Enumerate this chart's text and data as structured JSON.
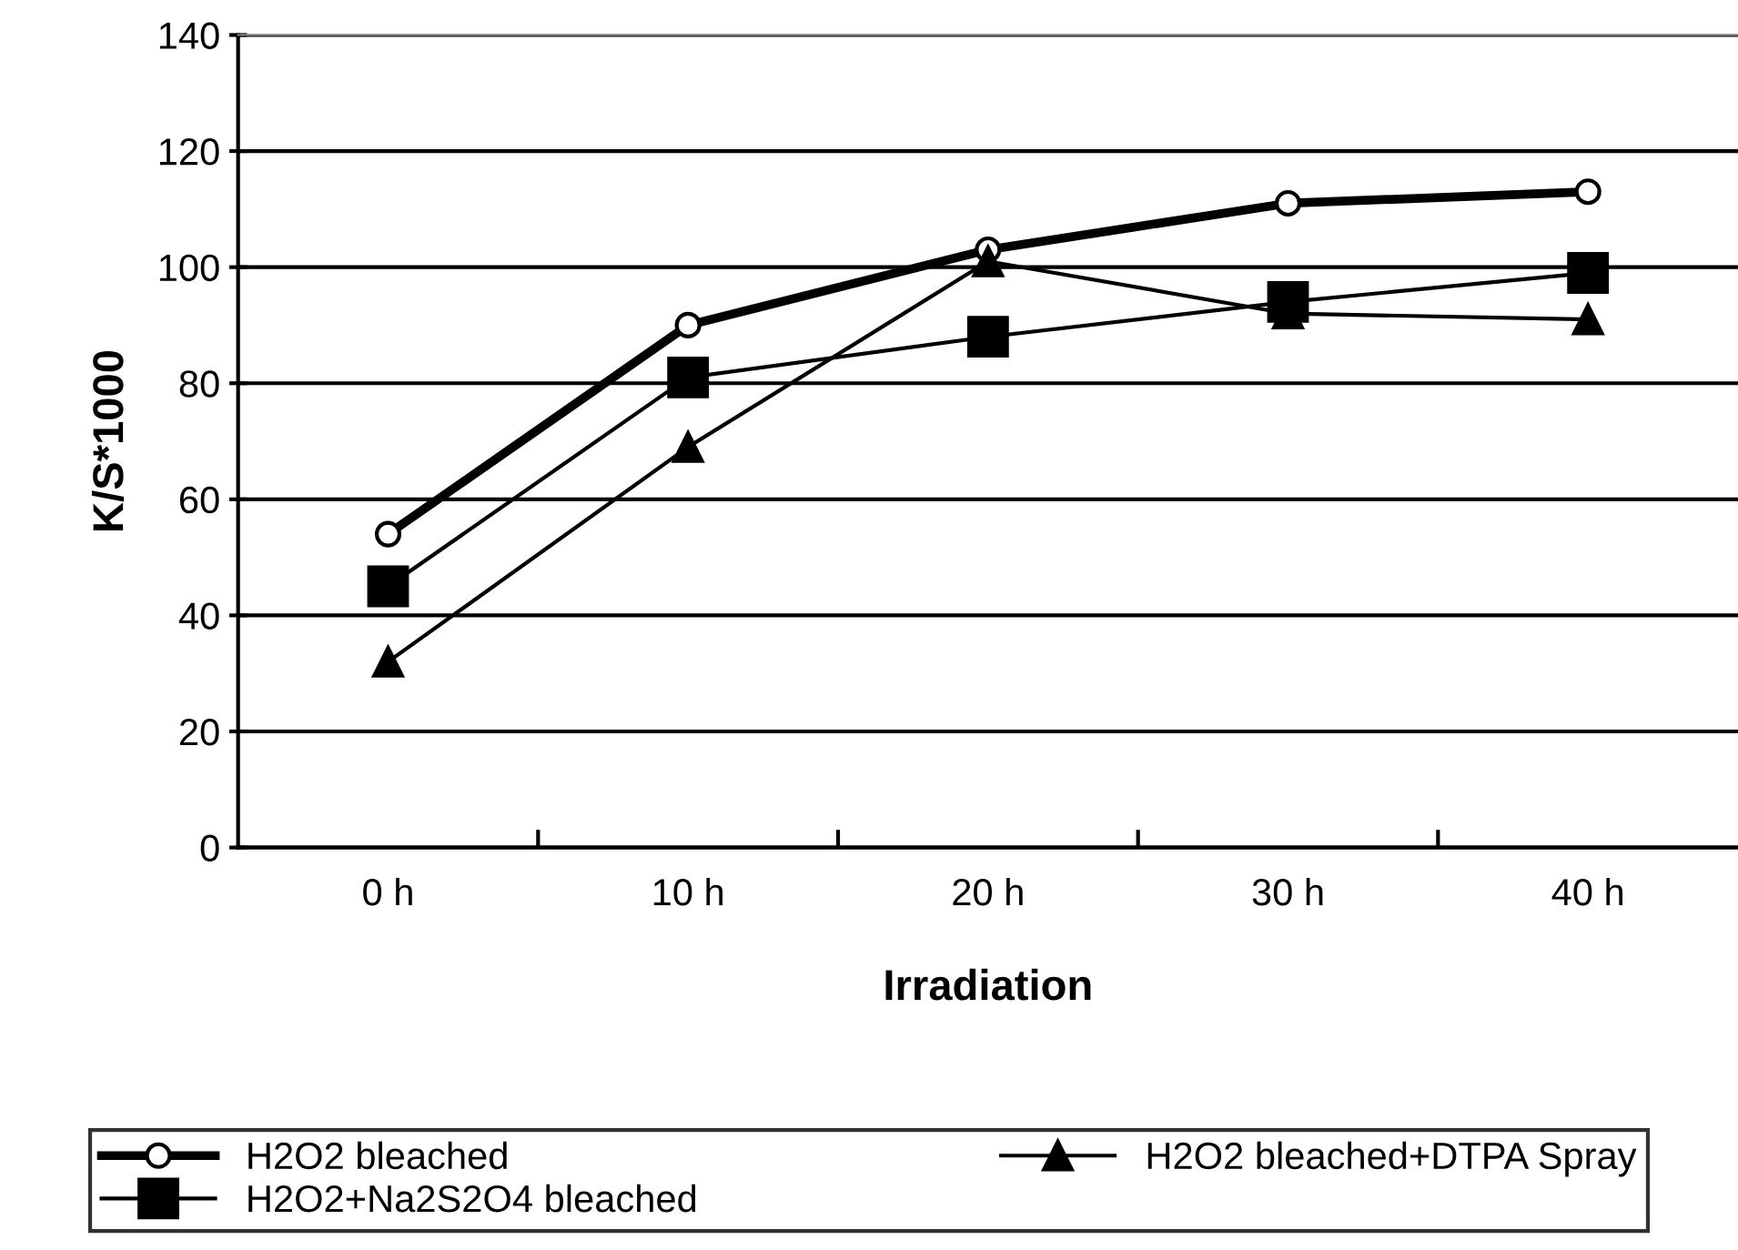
{
  "chart_data": {
    "type": "line",
    "xlabel": "Irradiation",
    "ylabel": "K/S*1000",
    "categories": [
      "0 h",
      "10 h",
      "20 h",
      "30 h",
      "40 h"
    ],
    "ylim": [
      0,
      140
    ],
    "yticks": [
      0,
      20,
      40,
      60,
      80,
      100,
      120,
      140
    ],
    "grid": "y",
    "legend": "bottom",
    "series": [
      {
        "name": "H2O2 bleached",
        "color": "#000000",
        "marker": "circle",
        "values": [
          54,
          90,
          103,
          111,
          113
        ]
      },
      {
        "name": "H2O2+Na2S2O4 bleached",
        "color": "#000000",
        "marker": "square",
        "values": [
          45,
          81,
          88,
          94,
          99
        ]
      },
      {
        "name": "H2O2 bleached+DTPA Spray",
        "color": "#000000",
        "marker": "triangle",
        "values": [
          32,
          69,
          101,
          92,
          91
        ]
      }
    ]
  }
}
